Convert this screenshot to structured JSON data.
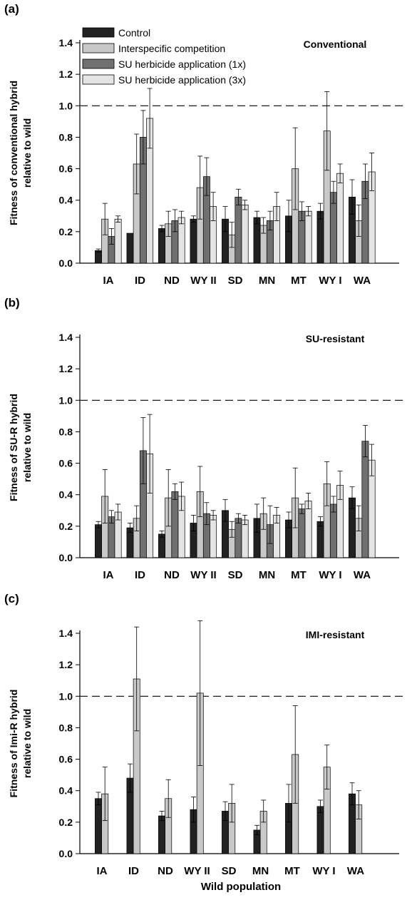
{
  "figure": {
    "xlabel": "Wild population"
  },
  "legend": {
    "entries": [
      {
        "label": "Control",
        "color": "#222222"
      },
      {
        "label": "Interspecific competition",
        "color": "#c8c8c8"
      },
      {
        "label": "SU herbicide application (1x)",
        "color": "#707070"
      },
      {
        "label": "SU herbicide application (3x)",
        "color": "#e4e4e4"
      }
    ]
  },
  "chart_data": [
    {
      "type": "bar",
      "panel_label": "(a)",
      "title": "Conventional",
      "ylabel": [
        "Fitness of conventional hybrid",
        "relative to wild"
      ],
      "ylim": [
        0,
        1.4
      ],
      "yticks": [
        "0.0",
        "0.2",
        "0.4",
        "0.6",
        "0.8",
        "1.0",
        "1.2",
        "1.4"
      ],
      "reference_line": 1.0,
      "categories": [
        "IA",
        "ID",
        "ND",
        "WY II",
        "SD",
        "MN",
        "MT",
        "WY I",
        "WA"
      ],
      "series": [
        {
          "name": "Control",
          "color": "#222222",
          "values": [
            0.08,
            0.19,
            0.22,
            0.28,
            0.28,
            0.29,
            0.3,
            0.33,
            0.42
          ],
          "errors": [
            0.01,
            0.0,
            0.02,
            0.02,
            0.08,
            0.04,
            0.1,
            0.05,
            0.11
          ]
        },
        {
          "name": "Interspecific competition",
          "color": "#c8c8c8",
          "values": [
            0.28,
            0.63,
            0.25,
            0.48,
            0.18,
            0.24,
            0.6,
            0.84,
            0.27
          ],
          "errors": [
            0.1,
            0.19,
            0.08,
            0.2,
            0.08,
            0.05,
            0.26,
            0.25,
            0.1
          ]
        },
        {
          "name": "SU herbicide application (1x)",
          "color": "#707070",
          "values": [
            0.17,
            0.8,
            0.27,
            0.55,
            0.42,
            0.27,
            0.33,
            0.45,
            0.52
          ],
          "errors": [
            0.05,
            0.17,
            0.07,
            0.12,
            0.05,
            0.06,
            0.06,
            0.07,
            0.11
          ]
        },
        {
          "name": "SU herbicide application (3x)",
          "color": "#e4e4e4",
          "values": [
            0.28,
            0.92,
            0.29,
            0.36,
            0.37,
            0.36,
            0.33,
            0.57,
            0.58
          ],
          "errors": [
            0.02,
            0.19,
            0.04,
            0.09,
            0.03,
            0.09,
            0.03,
            0.06,
            0.12
          ]
        }
      ]
    },
    {
      "type": "bar",
      "panel_label": "(b)",
      "title": "SU-resistant",
      "ylabel": [
        "Fitness of SU-R hybrid",
        "relative to wild"
      ],
      "ylim": [
        0,
        1.4
      ],
      "yticks": [
        "0.0",
        "0.2",
        "0.4",
        "0.6",
        "0.8",
        "1.0",
        "1.2",
        "1.4"
      ],
      "reference_line": 1.0,
      "categories": [
        "IA",
        "ID",
        "ND",
        "WY II",
        "SD",
        "MN",
        "MT",
        "WY I",
        "WA"
      ],
      "series": [
        {
          "name": "Control",
          "color": "#222222",
          "values": [
            0.21,
            0.19,
            0.15,
            0.22,
            0.3,
            0.25,
            0.24,
            0.23,
            0.38
          ],
          "errors": [
            0.02,
            0.03,
            0.02,
            0.05,
            0.07,
            0.09,
            0.05,
            0.03,
            0.07
          ]
        },
        {
          "name": "Interspecific competition",
          "color": "#c8c8c8",
          "values": [
            0.39,
            0.25,
            0.38,
            0.42,
            0.18,
            0.28,
            0.38,
            0.47,
            0.25
          ],
          "errors": [
            0.17,
            0.08,
            0.18,
            0.16,
            0.05,
            0.1,
            0.19,
            0.14,
            0.08
          ]
        },
        {
          "name": "SU herbicide application (1x)",
          "color": "#707070",
          "values": [
            0.26,
            0.68,
            0.42,
            0.28,
            0.25,
            0.21,
            0.31,
            0.34,
            0.74
          ],
          "errors": [
            0.04,
            0.21,
            0.05,
            0.07,
            0.03,
            0.12,
            0.03,
            0.05,
            0.1
          ]
        },
        {
          "name": "SU herbicide application (3x)",
          "color": "#e4e4e4",
          "values": [
            0.29,
            0.66,
            0.39,
            0.27,
            0.24,
            0.27,
            0.36,
            0.46,
            0.62
          ],
          "errors": [
            0.05,
            0.25,
            0.09,
            0.03,
            0.03,
            0.05,
            0.05,
            0.09,
            0.1
          ]
        }
      ]
    },
    {
      "type": "bar",
      "panel_label": "(c)",
      "title": "IMI-resistant",
      "ylabel": [
        "Fitness of Imi-R hybrid",
        "relative to wild"
      ],
      "ylim": [
        0,
        1.4
      ],
      "yticks": [
        "0.0",
        "0.2",
        "0.4",
        "0.6",
        "0.8",
        "1.0",
        "1.2",
        "1.4"
      ],
      "reference_line": 1.0,
      "categories": [
        "IA",
        "ID",
        "ND",
        "WY II",
        "SD",
        "MN",
        "MT",
        "WY I",
        "WA"
      ],
      "series": [
        {
          "name": "Control",
          "color": "#222222",
          "values": [
            0.35,
            0.48,
            0.24,
            0.28,
            0.27,
            0.15,
            0.32,
            0.3,
            0.38
          ],
          "errors": [
            0.04,
            0.09,
            0.03,
            0.08,
            0.06,
            0.03,
            0.12,
            0.04,
            0.07
          ]
        },
        {
          "name": "Interspecific competition",
          "color": "#c8c8c8",
          "values": [
            0.38,
            1.11,
            0.35,
            1.02,
            0.32,
            0.27,
            0.63,
            0.55,
            0.31
          ],
          "errors": [
            0.17,
            0.33,
            0.12,
            0.46,
            0.12,
            0.07,
            0.31,
            0.14,
            0.09
          ]
        }
      ]
    }
  ]
}
